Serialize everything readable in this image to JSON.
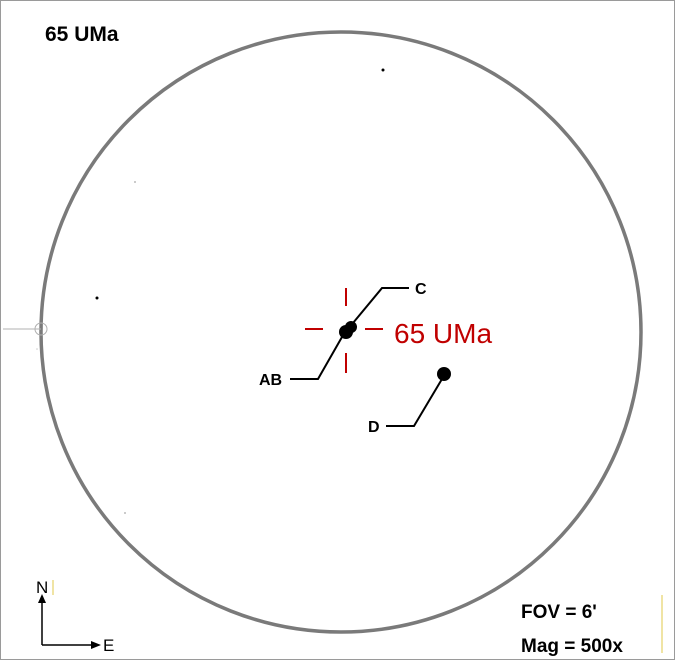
{
  "title": "65 UMa",
  "target_label": "65 UMa",
  "components": {
    "c": "C",
    "ab": "AB",
    "d": "D"
  },
  "compass": {
    "north": "N",
    "east": "E"
  },
  "info": {
    "fov": "FOV = 6'",
    "mag": "Mag = 500x"
  },
  "colors": {
    "circle": "#7a7a7a",
    "target": "#c00000",
    "ink": "#000000"
  }
}
